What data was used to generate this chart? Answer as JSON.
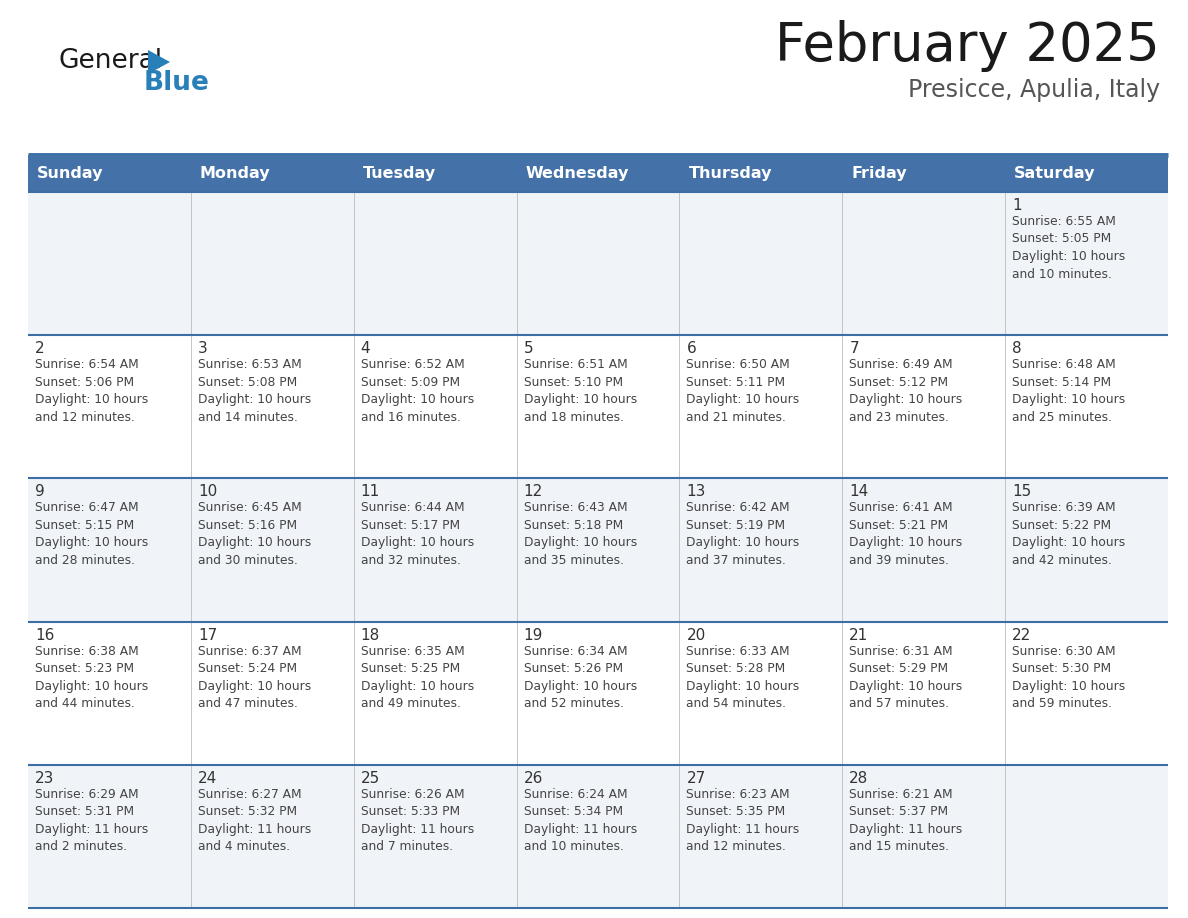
{
  "title": "February 2025",
  "subtitle": "Presicce, Apulia, Italy",
  "days_of_week": [
    "Sunday",
    "Monday",
    "Tuesday",
    "Wednesday",
    "Thursday",
    "Friday",
    "Saturday"
  ],
  "header_bg": "#4472A8",
  "header_text": "#ffffff",
  "row_bg_odd": "#f0f4f8",
  "row_bg_even": "#ffffff",
  "cell_text_color": "#444444",
  "day_num_color": "#333333",
  "divider_color": "#3A6EA5",
  "title_color": "#1a1a1a",
  "subtitle_color": "#555555",
  "logo_color1": "#1a1a1a",
  "logo_color2": "#2980B9",
  "logo_tri_color": "#2980B9",
  "calendar_data": [
    [
      {
        "day": "",
        "info": ""
      },
      {
        "day": "",
        "info": ""
      },
      {
        "day": "",
        "info": ""
      },
      {
        "day": "",
        "info": ""
      },
      {
        "day": "",
        "info": ""
      },
      {
        "day": "",
        "info": ""
      },
      {
        "day": "1",
        "info": "Sunrise: 6:55 AM\nSunset: 5:05 PM\nDaylight: 10 hours\nand 10 minutes."
      }
    ],
    [
      {
        "day": "2",
        "info": "Sunrise: 6:54 AM\nSunset: 5:06 PM\nDaylight: 10 hours\nand 12 minutes."
      },
      {
        "day": "3",
        "info": "Sunrise: 6:53 AM\nSunset: 5:08 PM\nDaylight: 10 hours\nand 14 minutes."
      },
      {
        "day": "4",
        "info": "Sunrise: 6:52 AM\nSunset: 5:09 PM\nDaylight: 10 hours\nand 16 minutes."
      },
      {
        "day": "5",
        "info": "Sunrise: 6:51 AM\nSunset: 5:10 PM\nDaylight: 10 hours\nand 18 minutes."
      },
      {
        "day": "6",
        "info": "Sunrise: 6:50 AM\nSunset: 5:11 PM\nDaylight: 10 hours\nand 21 minutes."
      },
      {
        "day": "7",
        "info": "Sunrise: 6:49 AM\nSunset: 5:12 PM\nDaylight: 10 hours\nand 23 minutes."
      },
      {
        "day": "8",
        "info": "Sunrise: 6:48 AM\nSunset: 5:14 PM\nDaylight: 10 hours\nand 25 minutes."
      }
    ],
    [
      {
        "day": "9",
        "info": "Sunrise: 6:47 AM\nSunset: 5:15 PM\nDaylight: 10 hours\nand 28 minutes."
      },
      {
        "day": "10",
        "info": "Sunrise: 6:45 AM\nSunset: 5:16 PM\nDaylight: 10 hours\nand 30 minutes."
      },
      {
        "day": "11",
        "info": "Sunrise: 6:44 AM\nSunset: 5:17 PM\nDaylight: 10 hours\nand 32 minutes."
      },
      {
        "day": "12",
        "info": "Sunrise: 6:43 AM\nSunset: 5:18 PM\nDaylight: 10 hours\nand 35 minutes."
      },
      {
        "day": "13",
        "info": "Sunrise: 6:42 AM\nSunset: 5:19 PM\nDaylight: 10 hours\nand 37 minutes."
      },
      {
        "day": "14",
        "info": "Sunrise: 6:41 AM\nSunset: 5:21 PM\nDaylight: 10 hours\nand 39 minutes."
      },
      {
        "day": "15",
        "info": "Sunrise: 6:39 AM\nSunset: 5:22 PM\nDaylight: 10 hours\nand 42 minutes."
      }
    ],
    [
      {
        "day": "16",
        "info": "Sunrise: 6:38 AM\nSunset: 5:23 PM\nDaylight: 10 hours\nand 44 minutes."
      },
      {
        "day": "17",
        "info": "Sunrise: 6:37 AM\nSunset: 5:24 PM\nDaylight: 10 hours\nand 47 minutes."
      },
      {
        "day": "18",
        "info": "Sunrise: 6:35 AM\nSunset: 5:25 PM\nDaylight: 10 hours\nand 49 minutes."
      },
      {
        "day": "19",
        "info": "Sunrise: 6:34 AM\nSunset: 5:26 PM\nDaylight: 10 hours\nand 52 minutes."
      },
      {
        "day": "20",
        "info": "Sunrise: 6:33 AM\nSunset: 5:28 PM\nDaylight: 10 hours\nand 54 minutes."
      },
      {
        "day": "21",
        "info": "Sunrise: 6:31 AM\nSunset: 5:29 PM\nDaylight: 10 hours\nand 57 minutes."
      },
      {
        "day": "22",
        "info": "Sunrise: 6:30 AM\nSunset: 5:30 PM\nDaylight: 10 hours\nand 59 minutes."
      }
    ],
    [
      {
        "day": "23",
        "info": "Sunrise: 6:29 AM\nSunset: 5:31 PM\nDaylight: 11 hours\nand 2 minutes."
      },
      {
        "day": "24",
        "info": "Sunrise: 6:27 AM\nSunset: 5:32 PM\nDaylight: 11 hours\nand 4 minutes."
      },
      {
        "day": "25",
        "info": "Sunrise: 6:26 AM\nSunset: 5:33 PM\nDaylight: 11 hours\nand 7 minutes."
      },
      {
        "day": "26",
        "info": "Sunrise: 6:24 AM\nSunset: 5:34 PM\nDaylight: 11 hours\nand 10 minutes."
      },
      {
        "day": "27",
        "info": "Sunrise: 6:23 AM\nSunset: 5:35 PM\nDaylight: 11 hours\nand 12 minutes."
      },
      {
        "day": "28",
        "info": "Sunrise: 6:21 AM\nSunset: 5:37 PM\nDaylight: 11 hours\nand 15 minutes."
      },
      {
        "day": "",
        "info": ""
      }
    ]
  ]
}
